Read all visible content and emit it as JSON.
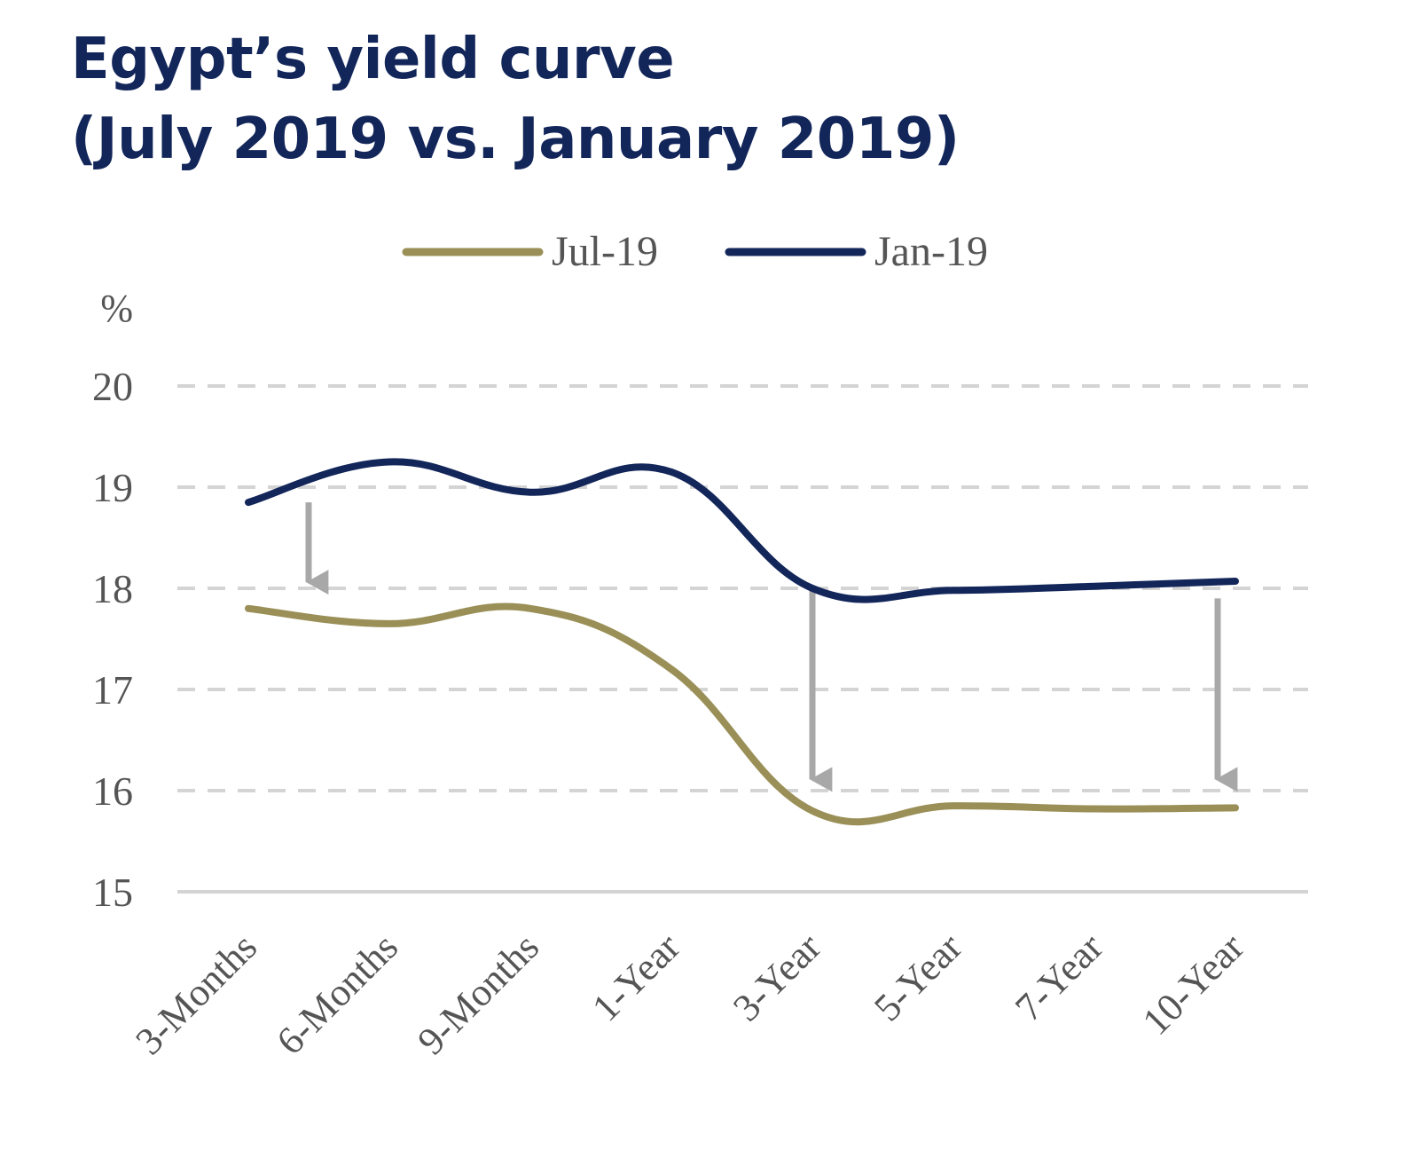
{
  "title_line1": "Egypt’s yield curve",
  "title_line2": "(July 2019 vs. January 2019)",
  "colors": {
    "title": "#13265a",
    "jul": "#9a8f57",
    "jan": "#13265a",
    "arrow": "#a8a8a8",
    "grid": "#d4d4d4",
    "text": "#555555"
  },
  "chart_data": {
    "type": "line",
    "title": "Egypt’s yield curve (July 2019 vs. January 2019)",
    "ylabel": "%",
    "xlabel": "",
    "ylim": [
      15,
      20
    ],
    "yticks": [
      15,
      16,
      17,
      18,
      19,
      20
    ],
    "grid": "dashed horizontal",
    "legend": "top-center",
    "categories": [
      "3-Months",
      "6-Months",
      "9-Months",
      "1-Year",
      "3-Year",
      "5-Year",
      "7-Year",
      "10-Year"
    ],
    "series": [
      {
        "name": "Jul-19",
        "color": "#9a8f57",
        "values": [
          17.8,
          17.65,
          17.8,
          17.2,
          15.8,
          15.85,
          15.82,
          15.83
        ]
      },
      {
        "name": "Jan-19",
        "color": "#13265a",
        "values": [
          18.85,
          19.25,
          18.95,
          19.15,
          18.0,
          17.98,
          18.02,
          18.07
        ]
      }
    ],
    "annotations": [
      {
        "type": "arrow-down",
        "category": "3-Months",
        "from": 18.85,
        "to": 17.85
      },
      {
        "type": "arrow-down",
        "category": "3-Year",
        "from": 18.0,
        "to": 15.9
      },
      {
        "type": "arrow-down",
        "category": "10-Year",
        "from": 17.9,
        "to": 15.9
      }
    ]
  }
}
